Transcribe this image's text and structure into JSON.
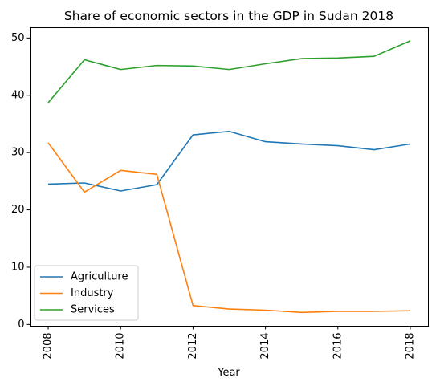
{
  "chart_data": {
    "type": "line",
    "title": "Share of economic sectors in the GDP in Sudan 2018",
    "xlabel": "Year",
    "ylabel": "",
    "x": [
      2008,
      2009,
      2010,
      2011,
      2012,
      2013,
      2014,
      2015,
      2016,
      2017,
      2018
    ],
    "xticks": [
      2008,
      2010,
      2012,
      2014,
      2016,
      2018
    ],
    "yticks": [
      0,
      10,
      20,
      30,
      40,
      50
    ],
    "xlim": [
      2007.5,
      2018.5
    ],
    "ylim": [
      -0.3,
      51.8
    ],
    "legend_position": "lower-left",
    "grid": false,
    "series": [
      {
        "name": "Agriculture",
        "color": "#1f77b4",
        "values": [
          24.5,
          24.7,
          23.3,
          24.4,
          33.1,
          33.7,
          31.9,
          31.5,
          31.2,
          30.5,
          31.5
        ]
      },
      {
        "name": "Industry",
        "color": "#ff7f0e",
        "values": [
          31.7,
          23.1,
          26.9,
          26.2,
          3.3,
          2.7,
          2.5,
          2.1,
          2.3,
          2.3,
          2.4
        ]
      },
      {
        "name": "Services",
        "color": "#2ca02c",
        "values": [
          38.7,
          46.2,
          44.5,
          45.2,
          45.1,
          44.5,
          45.5,
          46.4,
          46.5,
          46.8,
          49.5
        ]
      }
    ]
  }
}
